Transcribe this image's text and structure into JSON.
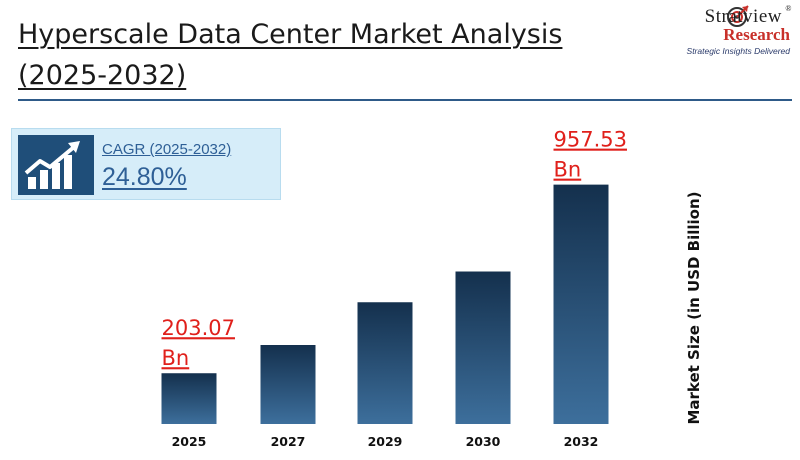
{
  "header": {
    "title_line1": "Hyperscale Data Center Market Analysis",
    "title_line2": "(2025-2032)"
  },
  "logo": {
    "brand_top": "Stratview",
    "brand_bottom": "Research",
    "tagline": "Strategic Insights Delivered",
    "registered_mark": "®"
  },
  "cagr": {
    "label": "CAGR (2025-2032)",
    "value": "24.80%",
    "icon": "growth-chart-icon"
  },
  "chart_data": {
    "type": "bar",
    "title": "Hyperscale Data Center Market Analysis (2025-2032)",
    "categories": [
      "2025",
      "2027",
      "2029",
      "2030",
      "2032"
    ],
    "values": [
      203.07,
      316,
      487,
      610,
      957.53
    ],
    "ylabel": "Market Size (in USD Billion)",
    "ylim": [
      0,
      1160
    ],
    "grid": false,
    "data_labels": [
      {
        "category": "2025",
        "line1": "203.07",
        "line2": "Bn"
      },
      {
        "category": "2032",
        "line1": "957.53",
        "line2": "Bn"
      }
    ]
  },
  "colors": {
    "bar_top": "#14304d",
    "bar_bottom": "#3d6f9c",
    "label_red": "#e0201b",
    "accent_blue": "#2e5f96",
    "cagr_bg": "#d6edf9",
    "rule": "#2e5a88"
  }
}
